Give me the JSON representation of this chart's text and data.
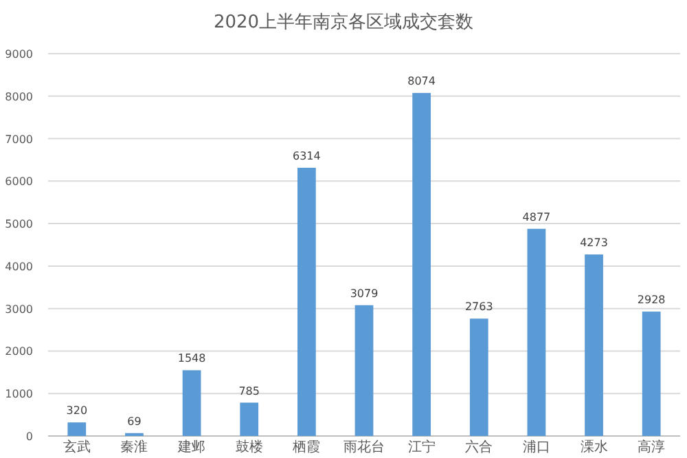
{
  "chart_data": {
    "type": "bar",
    "title": "2020上半年南京各区域成交套数",
    "categories": [
      "玄武",
      "秦淮",
      "建邺",
      "鼓楼",
      "栖霞",
      "雨花台",
      "江宁",
      "六合",
      "浦口",
      "溧水",
      "高淳"
    ],
    "values": [
      320,
      69,
      1548,
      785,
      6314,
      3079,
      8074,
      2763,
      4877,
      4273,
      2928
    ],
    "color": "#5b9bd5",
    "ylim": [
      0,
      9000
    ],
    "yticks": [
      0,
      1000,
      2000,
      3000,
      4000,
      5000,
      6000,
      7000,
      8000,
      9000
    ],
    "grid": "y",
    "data_labels": true
  }
}
